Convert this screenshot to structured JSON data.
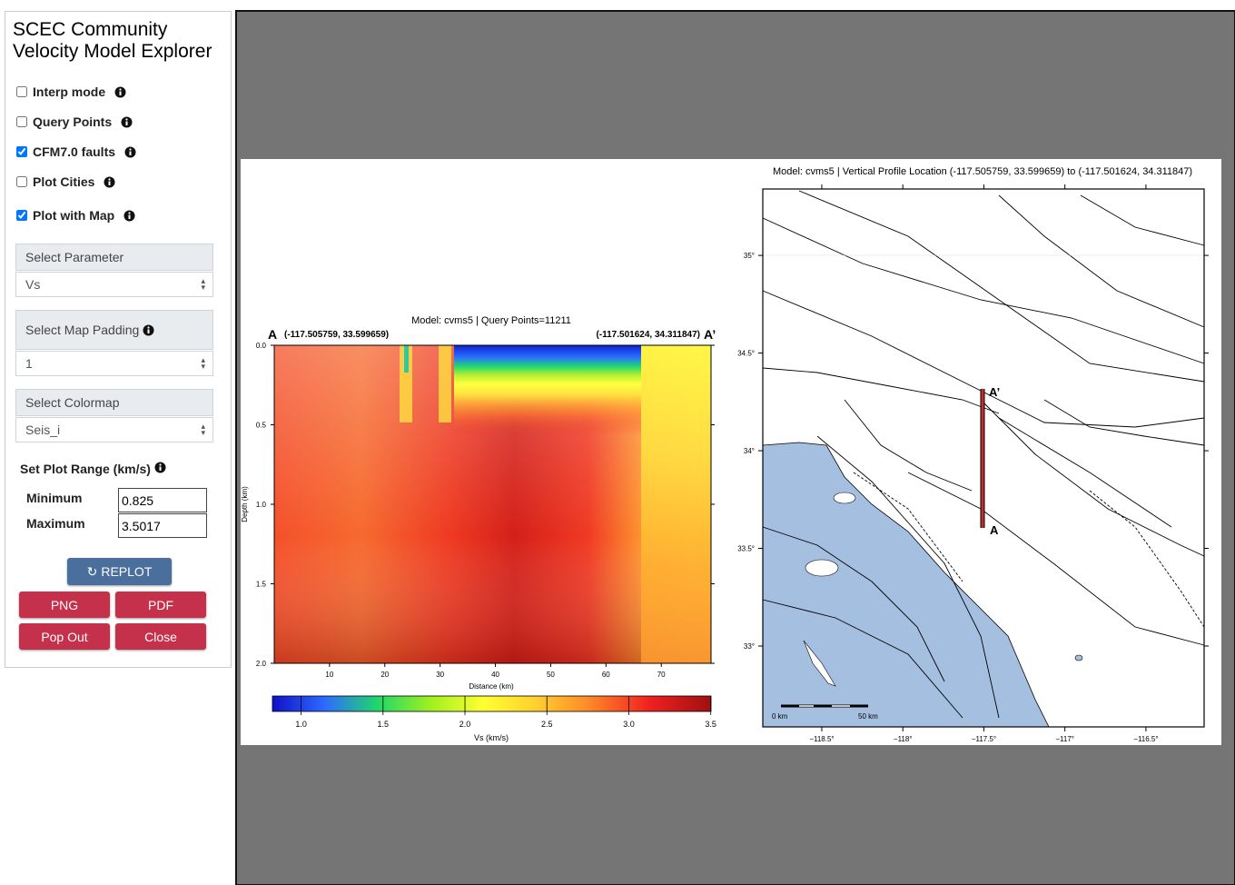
{
  "sidebar": {
    "title": "SCEC Community Velocity Model Explorer",
    "options": [
      {
        "label": "Interp mode",
        "checked": false
      },
      {
        "label": "Query Points",
        "checked": false
      },
      {
        "label": "CFM7.0 faults",
        "checked": true
      },
      {
        "label": "Plot Cities",
        "checked": false
      },
      {
        "label": "Plot with Map",
        "checked": true
      }
    ],
    "selects": [
      {
        "label": "Select Parameter",
        "value": "Vs"
      },
      {
        "label": "Select Map Padding",
        "value": "1"
      },
      {
        "label": "Select Colormap",
        "value": "Seis_i"
      }
    ],
    "range": {
      "label": "Set Plot Range (km/s)",
      "minimum_label": "Minimum",
      "minimum": "0.825",
      "maximum_label": "Maximum",
      "maximum": "3.5017"
    },
    "buttons": [
      "REPLOT",
      "PNG",
      "PDF",
      "Pop Out",
      "Close"
    ]
  },
  "cross_section": {
    "title": "Model: cvms5 | Query Points=11211",
    "start_marker": "A",
    "start_label": "(-117.505759, 33.599659)",
    "end_marker": "A’",
    "end_label": "(-117.501624, 34.311847)",
    "y_label": "Depth (km)",
    "x_label": "Distance (km)",
    "ylim": [
      0,
      2
    ],
    "yticks": [
      {
        "value": 0,
        "label": "0.0"
      },
      {
        "value": 0.5,
        "label": "0.5"
      },
      {
        "value": 1,
        "label": "1.0"
      },
      {
        "value": 1.5,
        "label": "1.5"
      },
      {
        "value": 2,
        "label": "2.0"
      }
    ],
    "xlim": [
      0,
      79
    ],
    "xticks": [
      10,
      20,
      30,
      40,
      50,
      60,
      70
    ],
    "colorbar": {
      "label": "Vs (km/s)",
      "lim": [
        0.825,
        3.5017
      ],
      "ticks": [
        {
          "value": 1,
          "label": "1.0"
        },
        {
          "value": 1.5,
          "label": "1.5"
        },
        {
          "value": 2,
          "label": "2.0"
        },
        {
          "value": 2.5,
          "label": "2.5"
        },
        {
          "value": 3,
          "label": "3.0"
        },
        3.5
      ]
    }
  },
  "map": {
    "title": "Model: cvms5 | Vertical Profile Location (-117.505759, 33.599659) to (-117.501624, 34.311847)",
    "ylim": [
      32.586,
      35.34
    ],
    "yticks": [
      {
        "value": 33,
        "label": "33°"
      },
      {
        "value": 33.5,
        "label": "33.5°"
      },
      {
        "value": 34,
        "label": "34°"
      },
      {
        "value": 34.5,
        "label": "34.5°"
      },
      {
        "value": 35,
        "label": "35°"
      }
    ],
    "xlim": [
      -118.864,
      -116.141
    ],
    "xticks": [
      {
        "value": -118.5,
        "label": "−118.5°"
      },
      {
        "value": -118,
        "label": "−118°"
      },
      {
        "value": -117.5,
        "label": "−117.5°"
      },
      {
        "value": -117,
        "label": "−117°"
      },
      {
        "value": -116.5,
        "label": "−116.5°"
      }
    ],
    "start_marker": "A",
    "end_marker": "A’",
    "scale_start": "0 km",
    "scale_end": "50 km"
  }
}
